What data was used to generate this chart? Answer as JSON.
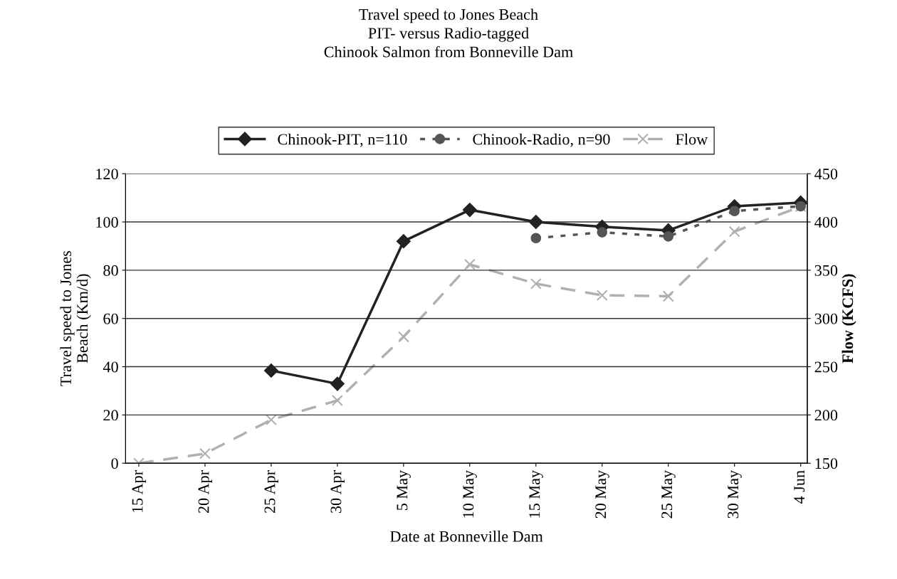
{
  "chart_data": {
    "type": "line",
    "title": "Travel speed to Jones Beach\nPIT- versus Radio-tagged\nChinook Salmon from Bonneville Dam",
    "xlabel": "Date at Bonneville Dam",
    "ylabel": "Travel speed to Jones\nBeach (Km/d)",
    "y2label": "Flow (KCFS)",
    "categories": [
      "15 Apr",
      "20 Apr",
      "25 Apr",
      "30 Apr",
      "5 May",
      "10 May",
      "15 May",
      "20 May",
      "25 May",
      "30 May",
      "4 Jun"
    ],
    "series": [
      {
        "name": "Chinook-PIT, n=110",
        "color": "#222222",
        "marker": "diamond",
        "line_style": "solid",
        "values": [
          null,
          null,
          38.4,
          32.9,
          92,
          105,
          100,
          98,
          96.5,
          106.5,
          108
        ]
      },
      {
        "name": "Chinook-Radio, n=90",
        "color": "#555555",
        "marker": "circle",
        "line_style": "dotted",
        "values": [
          null,
          null,
          null,
          null,
          null,
          null,
          93.3,
          95.7,
          94,
          104.5,
          106.5
        ]
      },
      {
        "name": "Flow",
        "color": "#b0b0b0",
        "marker": "cross",
        "line_style": "dashed",
        "axis": "y2",
        "values": [
          150,
          160,
          195,
          215,
          281,
          356,
          336,
          324,
          323,
          390,
          416
        ]
      }
    ],
    "ylim": [
      0,
      120
    ],
    "yticks": [
      0,
      20,
      40,
      60,
      80,
      100,
      120
    ],
    "y2lim": [
      150,
      450
    ],
    "y2ticks": [
      150,
      200,
      250,
      300,
      350,
      400,
      450
    ],
    "grid": "y",
    "legend": "top"
  }
}
